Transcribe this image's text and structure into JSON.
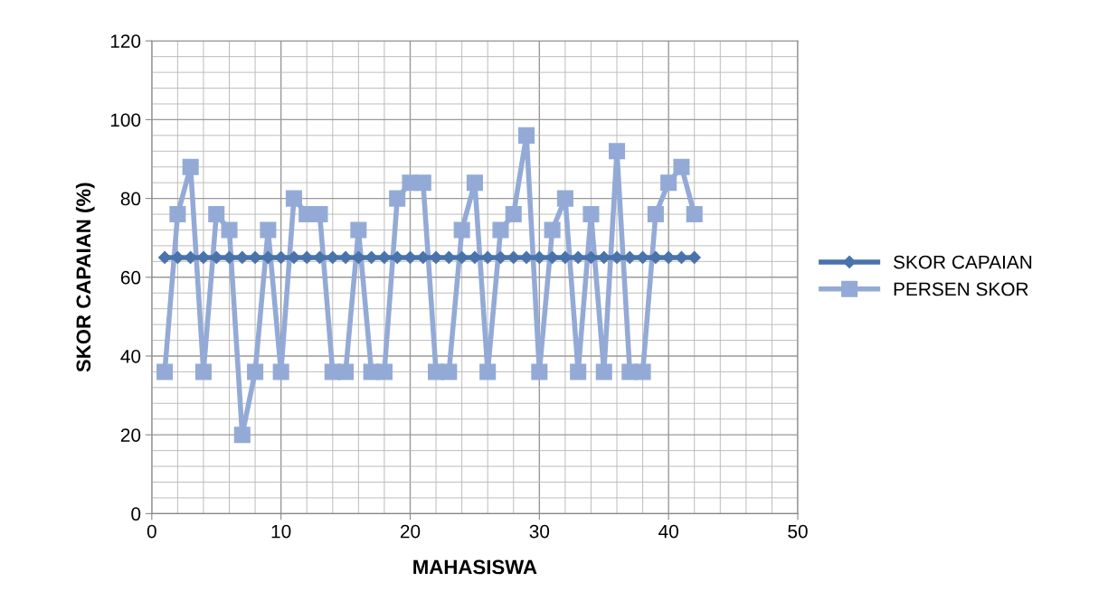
{
  "chart_data": {
    "type": "line",
    "xlabel": "MAHASISWA",
    "ylabel": "SKOR CAPAIAN (%)",
    "x": [
      1,
      2,
      3,
      4,
      5,
      6,
      7,
      8,
      9,
      10,
      11,
      12,
      13,
      14,
      15,
      16,
      17,
      18,
      19,
      20,
      21,
      22,
      23,
      24,
      25,
      26,
      27,
      28,
      29,
      30,
      31,
      32,
      33,
      34,
      35,
      36,
      37,
      38,
      39,
      40,
      41,
      42
    ],
    "series": [
      {
        "name": "SKOR CAPAIAN",
        "color": "#4a73ab",
        "marker": "diamond",
        "values": [
          65,
          65,
          65,
          65,
          65,
          65,
          65,
          65,
          65,
          65,
          65,
          65,
          65,
          65,
          65,
          65,
          65,
          65,
          65,
          65,
          65,
          65,
          65,
          65,
          65,
          65,
          65,
          65,
          65,
          65,
          65,
          65,
          65,
          65,
          65,
          65,
          65,
          65,
          65,
          65,
          65,
          65
        ]
      },
      {
        "name": "PERSEN SKOR",
        "color": "#94aad6",
        "marker": "square",
        "values": [
          36,
          76,
          88,
          36,
          76,
          72,
          20,
          36,
          72,
          36,
          80,
          76,
          76,
          36,
          36,
          72,
          36,
          36,
          80,
          84,
          84,
          36,
          36,
          72,
          84,
          36,
          72,
          76,
          96,
          36,
          72,
          80,
          36,
          76,
          36,
          92,
          36,
          36,
          76,
          84,
          88,
          76
        ]
      }
    ],
    "xlim": [
      0,
      50
    ],
    "xticks": [
      0,
      10,
      20,
      30,
      40,
      50
    ],
    "ylim": [
      0,
      120
    ],
    "yticks": [
      0,
      20,
      40,
      60,
      80,
      100,
      120
    ],
    "grid": true,
    "legend": "right",
    "line_style": "solid"
  }
}
